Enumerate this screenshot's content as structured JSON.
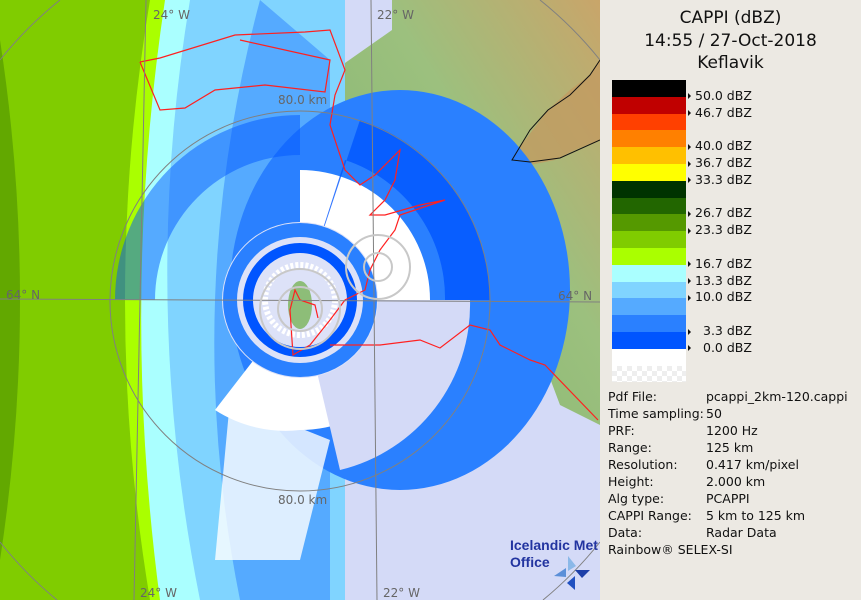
{
  "header": {
    "product": "CAPPI (dBZ)",
    "datetime": "14:55 / 27-Oct-2018",
    "site": "Keflavik"
  },
  "legend": {
    "bands": [
      {
        "color": "#000000",
        "label": "50.0 dBZ"
      },
      {
        "color": "#c00000",
        "label": "46.7 dBZ"
      },
      {
        "color": "#ff4000",
        "label": ""
      },
      {
        "color": "#ff8000",
        "label": "40.0 dBZ"
      },
      {
        "color": "#ffc000",
        "label": "36.7 dBZ"
      },
      {
        "color": "#ffff00",
        "label": "33.3 dBZ"
      },
      {
        "color": "#003300",
        "label": ""
      },
      {
        "color": "#226600",
        "label": "26.7 dBZ"
      },
      {
        "color": "#559900",
        "label": "23.3 dBZ"
      },
      {
        "color": "#80cc00",
        "label": ""
      },
      {
        "color": "#aaff00",
        "label": "16.7 dBZ"
      },
      {
        "color": "#aaffff",
        "label": "13.3 dBZ"
      },
      {
        "color": "#80d4ff",
        "label": "10.0 dBZ"
      },
      {
        "color": "#55aaff",
        "label": ""
      },
      {
        "color": "#2a80ff",
        "label": "3.3 dBZ"
      },
      {
        "color": "#0055ff",
        "label": "0.0 dBZ"
      },
      {
        "color": "#ffffff",
        "label": ""
      },
      {
        "color": "checker",
        "label": ""
      }
    ]
  },
  "info": [
    {
      "key": "Pdf File:",
      "value": "pcappi_2km-120.cappi"
    },
    {
      "key": "Time sampling:",
      "value": "50"
    },
    {
      "key": "PRF:",
      "value": "1200 Hz"
    },
    {
      "key": "Range:",
      "value": "125 km"
    },
    {
      "key": "Resolution:",
      "value": "0.417 km/pixel"
    },
    {
      "key": "Height:",
      "value": "2.000 km"
    },
    {
      "key": "Alg type:",
      "value": "PCAPPI"
    },
    {
      "key": "CAPPI Range:",
      "value": "5 km to 125 km"
    },
    {
      "key": "Data:",
      "value": "Radar Data"
    }
  ],
  "credit": "Rainbow® SELEX-SI",
  "map": {
    "lon_west": "24° W",
    "lon_east": "22° W",
    "lat": "64° N",
    "ring_label": "80.0 km",
    "logo_line1": "Icelandic Met",
    "logo_line2": "Office",
    "colors": {
      "sea": "#d4daf7",
      "land": "#8dbd78",
      "highland": "#c9a56a",
      "coastline": "#ff2020",
      "grid": "#808080"
    }
  }
}
